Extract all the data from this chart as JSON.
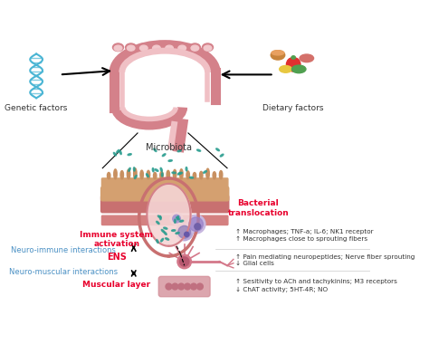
{
  "bg_color": "#ffffff",
  "labels": {
    "genetic_factors": "Genetic factors",
    "dietary_factors": "Dietary factors",
    "microbiota": "Microbiota",
    "bacterial_translocation": "Bacterial\ntranslocation",
    "immune_system": "Immune system\nactivation",
    "neuro_immune": "Neuro-immune interactions",
    "ENS": "ENS",
    "neuro_muscular": "Neuro-muscular interactions",
    "muscular_layer": "Muscular layer"
  },
  "right_labels": [
    "↑ Macrophages; TNF-a; IL-6; NK1 receptor",
    "↑ Macrophages close to sprouting fibers",
    "↑ Pain mediating neuropeptides; Nerve fiber sprouting",
    "↓ Glial cells",
    "↑ Sesitivity to ACh and tachykinins; M3 receptors",
    "↓ ChAT activity; 5HT-4R; NO"
  ],
  "colors": {
    "red": "#e8002d",
    "blue": "#4a90c4",
    "dark": "#333333",
    "colon_pink": "#d4818a",
    "dna_blue": "#4ab5d4",
    "bacteria_teal": "#2a9d8f",
    "intestine_layer1": "#d4a070",
    "cell_purple_light": "#b8a8d8",
    "cell_purple_mid": "#8878b8",
    "cell_purple_dark": "#6658a8",
    "nerve_pink": "#d4788a",
    "nerve_dark": "#b85870",
    "muscle_pink": "#d4909a",
    "muscle_dark": "#c07080"
  }
}
